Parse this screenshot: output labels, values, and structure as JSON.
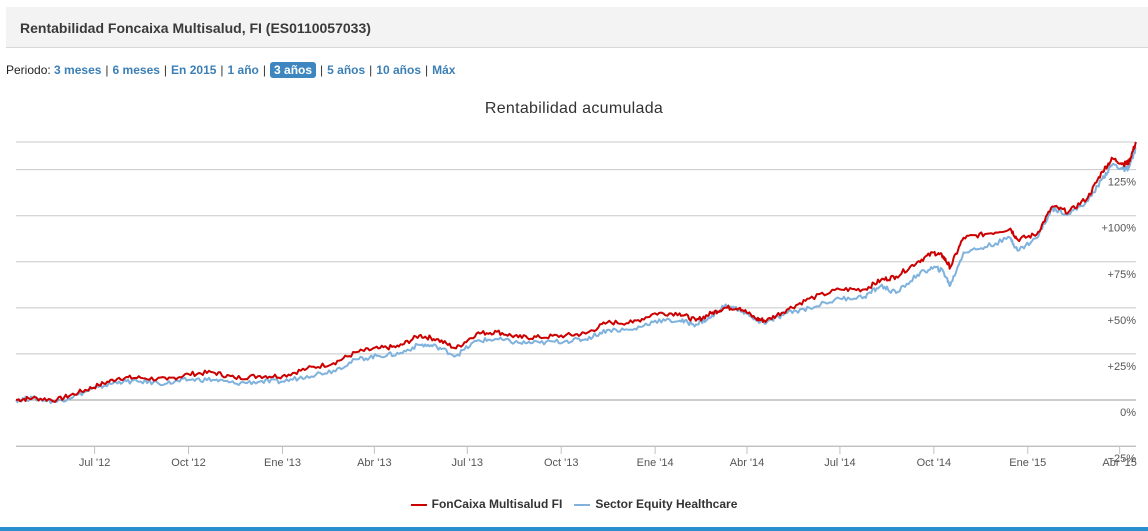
{
  "header": {
    "title": "Rentabilidad Foncaixa Multisalud, FI (ES0110057033)"
  },
  "period": {
    "label": "Periodo:",
    "options": [
      {
        "label": "3 meses",
        "active": false
      },
      {
        "label": "6 meses",
        "active": false
      },
      {
        "label": "En 2015",
        "active": false
      },
      {
        "label": "1 año",
        "active": false
      },
      {
        "label": "3 años",
        "active": true
      },
      {
        "label": "5 años",
        "active": false
      },
      {
        "label": "10 años",
        "active": false
      },
      {
        "label": "Máx",
        "active": false
      }
    ]
  },
  "colors": {
    "fund": "#cc0000",
    "sector": "#7fb2dd",
    "accent": "#3d86bf",
    "grid": "#c8c8c8"
  },
  "chart_data": {
    "type": "line",
    "title": "Rentabilidad acumulada",
    "xlabel": "",
    "ylabel": "",
    "ylim": [
      -25,
      140
    ],
    "xlim": [
      "2012-04-15",
      "2015-04-17"
    ],
    "grid": true,
    "legend_position": "bottom-center",
    "x_ticks": [
      {
        "label": "Jul '12",
        "date": "2012-07-01"
      },
      {
        "label": "Oct '12",
        "date": "2012-10-01"
      },
      {
        "label": "Ene '13",
        "date": "2013-01-01"
      },
      {
        "label": "Abr '13",
        "date": "2013-04-01"
      },
      {
        "label": "Jul '13",
        "date": "2013-07-01"
      },
      {
        "label": "Oct '13",
        "date": "2013-10-01"
      },
      {
        "label": "Ene '14",
        "date": "2014-01-01"
      },
      {
        "label": "Abr '14",
        "date": "2014-04-01"
      },
      {
        "label": "Jul '14",
        "date": "2014-07-01"
      },
      {
        "label": "Oct '14",
        "date": "2014-10-01"
      },
      {
        "label": "Ene '15",
        "date": "2015-01-01"
      },
      {
        "label": "Abr '15",
        "date": "2015-04-01"
      }
    ],
    "y_ticks": [
      {
        "label": "−25%",
        "value": -25
      },
      {
        "label": "0%",
        "value": 0
      },
      {
        "label": "+25%",
        "value": 25
      },
      {
        "label": "+50%",
        "value": 50
      },
      {
        "label": "+75%",
        "value": 75
      },
      {
        "label": "+100%",
        "value": 100
      },
      {
        "label": "125%",
        "value": 125
      }
    ],
    "series": [
      {
        "name": "FonCaixa Multisalud FI",
        "points": [
          [
            "2012-04-15",
            0
          ],
          [
            "2012-05-01",
            1
          ],
          [
            "2012-05-25",
            0
          ],
          [
            "2012-06-15",
            4
          ],
          [
            "2012-07-05",
            8
          ],
          [
            "2012-07-25",
            12
          ],
          [
            "2012-08-15",
            12
          ],
          [
            "2012-09-10",
            11
          ],
          [
            "2012-10-01",
            14
          ],
          [
            "2012-10-25",
            15
          ],
          [
            "2012-11-15",
            12
          ],
          [
            "2012-12-10",
            13
          ],
          [
            "2013-01-01",
            13
          ],
          [
            "2013-01-25",
            17
          ],
          [
            "2013-02-20",
            20
          ],
          [
            "2013-03-15",
            26
          ],
          [
            "2013-04-05",
            28
          ],
          [
            "2013-04-25",
            29
          ],
          [
            "2013-05-15",
            35
          ],
          [
            "2013-06-01",
            33
          ],
          [
            "2013-06-20",
            28
          ],
          [
            "2013-07-10",
            36
          ],
          [
            "2013-07-30",
            37
          ],
          [
            "2013-08-20",
            34
          ],
          [
            "2013-09-10",
            34
          ],
          [
            "2013-10-05",
            35
          ],
          [
            "2013-10-25",
            36
          ],
          [
            "2013-11-15",
            42
          ],
          [
            "2013-12-10",
            42
          ],
          [
            "2014-01-01",
            47
          ],
          [
            "2014-01-25",
            47
          ],
          [
            "2014-02-10",
            43
          ],
          [
            "2014-02-25",
            47
          ],
          [
            "2014-03-10",
            50
          ],
          [
            "2014-03-25",
            50
          ],
          [
            "2014-04-10",
            44
          ],
          [
            "2014-04-20",
            43
          ],
          [
            "2014-05-10",
            49
          ],
          [
            "2014-06-01",
            55
          ],
          [
            "2014-07-01",
            60
          ],
          [
            "2014-07-25",
            60
          ],
          [
            "2014-08-10",
            65
          ],
          [
            "2014-08-25",
            67
          ],
          [
            "2014-09-15",
            75
          ],
          [
            "2014-10-01",
            80
          ],
          [
            "2014-10-10",
            78
          ],
          [
            "2014-10-17",
            72
          ],
          [
            "2014-10-30",
            88
          ],
          [
            "2014-11-20",
            90
          ],
          [
            "2014-12-15",
            93
          ],
          [
            "2014-12-22",
            87
          ],
          [
            "2015-01-10",
            90
          ],
          [
            "2015-01-25",
            105
          ],
          [
            "2015-02-10",
            102
          ],
          [
            "2015-03-01",
            110
          ],
          [
            "2015-03-15",
            124
          ],
          [
            "2015-03-25",
            131
          ],
          [
            "2015-04-05",
            128
          ],
          [
            "2015-04-10",
            129
          ],
          [
            "2015-04-17",
            140
          ]
        ]
      },
      {
        "name": "Sector Equity Healthcare",
        "points": [
          [
            "2012-04-15",
            0
          ],
          [
            "2012-05-01",
            1
          ],
          [
            "2012-05-25",
            -1
          ],
          [
            "2012-06-15",
            3
          ],
          [
            "2012-07-05",
            7
          ],
          [
            "2012-07-25",
            10
          ],
          [
            "2012-08-15",
            10
          ],
          [
            "2012-09-10",
            9
          ],
          [
            "2012-10-01",
            11
          ],
          [
            "2012-10-25",
            11
          ],
          [
            "2012-11-15",
            9
          ],
          [
            "2012-12-10",
            10
          ],
          [
            "2013-01-01",
            10
          ],
          [
            "2013-01-25",
            13
          ],
          [
            "2013-02-20",
            16
          ],
          [
            "2013-03-15",
            22
          ],
          [
            "2013-04-05",
            24
          ],
          [
            "2013-04-25",
            25
          ],
          [
            "2013-05-15",
            30
          ],
          [
            "2013-06-01",
            29
          ],
          [
            "2013-06-20",
            24
          ],
          [
            "2013-07-10",
            32
          ],
          [
            "2013-07-30",
            33
          ],
          [
            "2013-08-20",
            31
          ],
          [
            "2013-09-10",
            31
          ],
          [
            "2013-10-05",
            32
          ],
          [
            "2013-10-25",
            33
          ],
          [
            "2013-11-15",
            38
          ],
          [
            "2013-12-10",
            38
          ],
          [
            "2014-01-01",
            43
          ],
          [
            "2014-01-25",
            43
          ],
          [
            "2014-02-10",
            41
          ],
          [
            "2014-02-25",
            45
          ],
          [
            "2014-03-10",
            51
          ],
          [
            "2014-03-25",
            49
          ],
          [
            "2014-04-10",
            43
          ],
          [
            "2014-04-20",
            42
          ],
          [
            "2014-05-10",
            47
          ],
          [
            "2014-06-01",
            50
          ],
          [
            "2014-07-01",
            55
          ],
          [
            "2014-07-25",
            56
          ],
          [
            "2014-08-10",
            62
          ],
          [
            "2014-08-25",
            58
          ],
          [
            "2014-09-15",
            68
          ],
          [
            "2014-10-01",
            72
          ],
          [
            "2014-10-10",
            70
          ],
          [
            "2014-10-17",
            62
          ],
          [
            "2014-10-30",
            80
          ],
          [
            "2014-11-20",
            83
          ],
          [
            "2014-12-15",
            88
          ],
          [
            "2014-12-22",
            81
          ],
          [
            "2015-01-10",
            88
          ],
          [
            "2015-01-25",
            104
          ],
          [
            "2015-02-10",
            101
          ],
          [
            "2015-03-01",
            108
          ],
          [
            "2015-03-15",
            120
          ],
          [
            "2015-03-25",
            128
          ],
          [
            "2015-04-05",
            125
          ],
          [
            "2015-04-10",
            126
          ],
          [
            "2015-04-17",
            137
          ]
        ]
      }
    ]
  }
}
